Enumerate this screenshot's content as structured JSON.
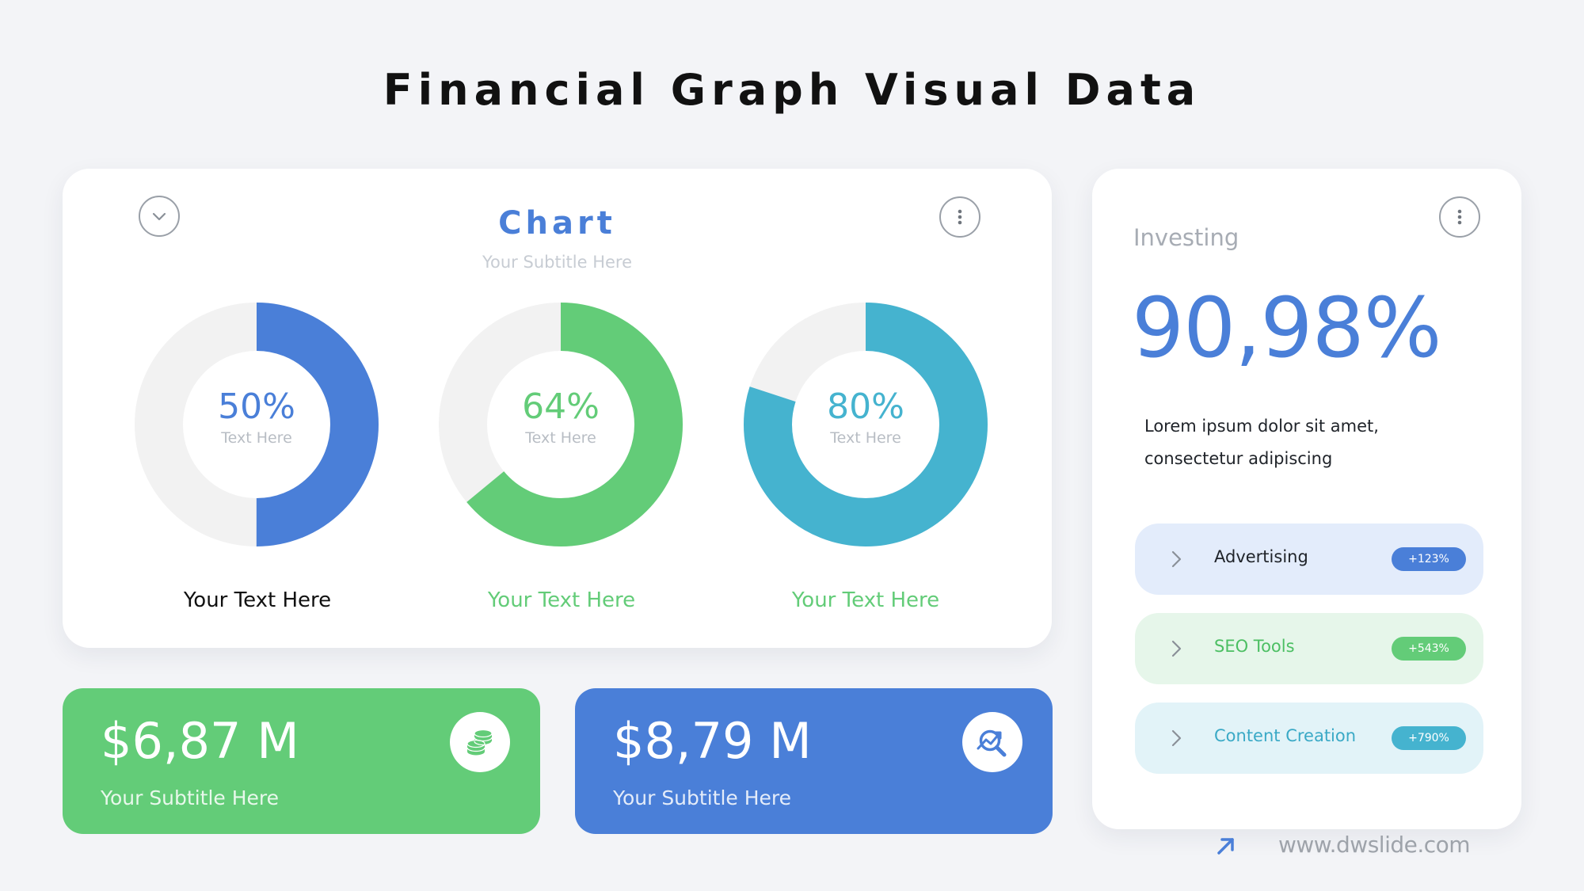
{
  "page": {
    "title": "Financial Graph Visual Data"
  },
  "chart_card": {
    "heading": "Chart",
    "subtitle": "Your Subtitle Here",
    "donuts": [
      {
        "value": "50%",
        "percent": 50,
        "label": "Text Here",
        "caption": "Your Text Here",
        "color": "#4a7fd8",
        "caption_color": "#111111"
      },
      {
        "value": "64%",
        "percent": 64,
        "label": "Text Here",
        "caption": "Your Text Here",
        "color": "#63cc78",
        "caption_color": "#63cc78"
      },
      {
        "value": "80%",
        "percent": 80,
        "label": "Text Here",
        "caption": "Your Text Here",
        "color": "#45b3cf",
        "caption_color": "#63cc78"
      }
    ],
    "track_color": "#f2f2f2",
    "dropdown_icon": "chevron-down-icon",
    "menu_icon": "more-vertical-icon"
  },
  "stats": [
    {
      "value": "$6,87 M",
      "subtitle": "Your Subtitle Here",
      "color": "#63cc78",
      "icon": "coins-icon"
    },
    {
      "value": "$8,79 M",
      "subtitle": "Your Subtitle Here",
      "color": "#4a7fd8",
      "icon": "analytics-search-icon"
    }
  ],
  "investing": {
    "label": "Investing",
    "value": "90,98%",
    "description": "Lorem ipsum dolor sit amet, consectetur adipiscing",
    "menu_icon": "more-vertical-icon",
    "items": [
      {
        "label": "Advertising",
        "badge": "+123%",
        "bg": "#e3ecfb",
        "text_color": "#1f2329",
        "badge_color": "#4a7fd8"
      },
      {
        "label": "SEO Tools",
        "badge": "+543%",
        "bg": "#e6f6ea",
        "text_color": "#4cbf63",
        "badge_color": "#63cc78"
      },
      {
        "label": "Content Creation",
        "badge": "+790%",
        "bg": "#e2f3f8",
        "text_color": "#3aa9c6",
        "badge_color": "#45b3cf"
      }
    ]
  },
  "footer": {
    "site": "www.dwslide.com",
    "icon": "arrow-up-right-icon"
  }
}
